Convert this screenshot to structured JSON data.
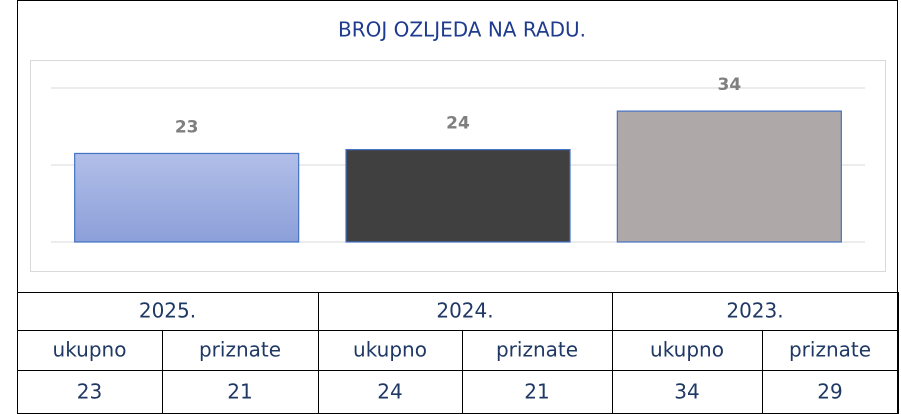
{
  "chart_data": {
    "type": "bar",
    "title": "BROJ OZLJEDA NA RADU.",
    "categories": [
      null,
      null,
      null
    ],
    "values": [
      23,
      24,
      34
    ],
    "colors": [
      "#9aaadf",
      "#404040",
      "#aea9a8"
    ],
    "ylim": [
      0,
      40
    ],
    "yticks": [
      0,
      20,
      40
    ],
    "grid": true
  },
  "table": {
    "years": [
      "2025.",
      "2024.",
      "2023."
    ],
    "subheaders": [
      "ukupno",
      "priznate",
      "ukupno",
      "priznate",
      "ukupno",
      "priznate"
    ],
    "values": [
      23,
      21,
      24,
      21,
      34,
      29
    ]
  }
}
